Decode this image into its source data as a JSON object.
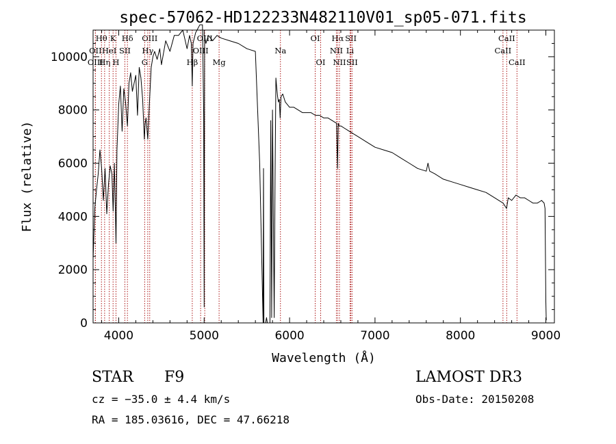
{
  "chart_data": {
    "type": "line",
    "title": "spec-57062-HD122233N482110V01_sp05-071.fits",
    "xlabel": "Wavelength (Å)",
    "ylabel": "Flux (relative)",
    "xlim": [
      3700,
      9100
    ],
    "ylim": [
      0,
      11000
    ],
    "xticks": [
      4000,
      5000,
      6000,
      7000,
      8000,
      9000
    ],
    "yticks": [
      0,
      2000,
      4000,
      6000,
      8000,
      10000
    ],
    "line_color": "#000000",
    "marker_color": "#aa1111",
    "series": [
      {
        "name": "spectrum",
        "x": [
          3700,
          3720,
          3740,
          3760,
          3780,
          3800,
          3820,
          3840,
          3860,
          3880,
          3900,
          3920,
          3935,
          3950,
          3968,
          3980,
          4000,
          4020,
          4040,
          4060,
          4080,
          4102,
          4120,
          4140,
          4160,
          4180,
          4200,
          4220,
          4240,
          4260,
          4280,
          4300,
          4310,
          4320,
          4340,
          4360,
          4380,
          4400,
          4420,
          4450,
          4480,
          4500,
          4550,
          4600,
          4650,
          4700,
          4750,
          4800,
          4830,
          4850,
          4861,
          4870,
          4900,
          4950,
          4980,
          4995,
          5000,
          5005,
          5020,
          5050,
          5100,
          5150,
          5200,
          5300,
          5400,
          5500,
          5600,
          5650,
          5690,
          5695,
          5700,
          5705,
          5715,
          5720,
          5730,
          5740,
          5750,
          5760,
          5770,
          5780,
          5790,
          5800,
          5810,
          5820,
          5830,
          5840,
          5850,
          5860,
          5870,
          5880,
          5890,
          5900,
          5920,
          5950,
          6000,
          6050,
          6100,
          6150,
          6200,
          6250,
          6300,
          6350,
          6400,
          6450,
          6500,
          6550,
          6562,
          6570,
          6580,
          6600,
          6650,
          6700,
          6800,
          6900,
          7000,
          7100,
          7200,
          7300,
          7400,
          7500,
          7600,
          7620,
          7640,
          7700,
          7800,
          7900,
          8000,
          8100,
          8200,
          8300,
          8400,
          8500,
          8540,
          8560,
          8600,
          8650,
          8700,
          8750,
          8800,
          8850,
          8900,
          8950,
          8980,
          8990,
          9000,
          9005
        ],
        "y": [
          2400,
          4300,
          5000,
          5600,
          6500,
          5800,
          4600,
          5800,
          4100,
          5200,
          5900,
          5600,
          4200,
          6000,
          3000,
          6500,
          8200,
          8900,
          7200,
          8800,
          8300,
          7400,
          9000,
          9400,
          8700,
          9000,
          9300,
          7800,
          9600,
          9200,
          8400,
          6900,
          7500,
          7700,
          6900,
          8300,
          9600,
          10000,
          10200,
          9900,
          10300,
          9700,
          10600,
          10200,
          10800,
          10800,
          11000,
          10300,
          10800,
          10500,
          8900,
          10500,
          10900,
          11200,
          11200,
          7800,
          600,
          10800,
          10500,
          10800,
          10600,
          10800,
          10700,
          10600,
          10500,
          10300,
          10200,
          6000,
          0,
          5800,
          0,
          0,
          0,
          0,
          200,
          0,
          0,
          0,
          0,
          7600,
          200,
          8000,
          4000,
          200,
          5500,
          9200,
          8800,
          8500,
          8300,
          8400,
          7700,
          8500,
          8600,
          8300,
          8100,
          8100,
          8000,
          7900,
          7900,
          7900,
          7800,
          7800,
          7700,
          7700,
          7600,
          7500,
          5800,
          7500,
          7400,
          7400,
          7300,
          7200,
          7000,
          6800,
          6600,
          6500,
          6400,
          6200,
          6000,
          5800,
          5700,
          6000,
          5700,
          5600,
          5400,
          5300,
          5200,
          5100,
          5000,
          4900,
          4700,
          4500,
          4300,
          4700,
          4600,
          4800,
          4700,
          4700,
          4600,
          4500,
          4500,
          4600,
          4500,
          4300,
          800,
          100
        ]
      }
    ],
    "spectral_lines": [
      {
        "label": "Hθ",
        "x": 3798,
        "row": 0
      },
      {
        "label": "OII",
        "x": 3727,
        "row": 1
      },
      {
        "label": "OIII",
        "x": 3727,
        "row": 2
      },
      {
        "label": "Hη",
        "x": 3835,
        "row": 2
      },
      {
        "label": "K",
        "x": 3934,
        "row": 0
      },
      {
        "label": "HeI",
        "x": 3889,
        "row": 1
      },
      {
        "label": "SII",
        "x": 4072,
        "row": 1
      },
      {
        "label": "H",
        "x": 3968,
        "row": 2
      },
      {
        "label": "Hδ",
        "x": 4102,
        "row": 0
      },
      {
        "label": "OIII",
        "x": 4363,
        "row": 0
      },
      {
        "label": "Hγ",
        "x": 4340,
        "row": 1
      },
      {
        "label": "G",
        "x": 4304,
        "row": 2
      },
      {
        "label": "Hβ",
        "x": 4861,
        "row": 2
      },
      {
        "label": "OIII",
        "x": 5007,
        "row": 0
      },
      {
        "label": "OIII",
        "x": 4959,
        "row": 1
      },
      {
        "label": "Mg",
        "x": 5175,
        "row": 2
      },
      {
        "label": "Na",
        "x": 5893,
        "row": 1
      },
      {
        "label": "OI",
        "x": 6300,
        "row": 0
      },
      {
        "label": "OI",
        "x": 6364,
        "row": 2
      },
      {
        "label": "Hα",
        "x": 6563,
        "row": 0
      },
      {
        "label": "SII",
        "x": 6717,
        "row": 0
      },
      {
        "label": "NII",
        "x": 6548,
        "row": 1
      },
      {
        "label": "Li",
        "x": 6708,
        "row": 1
      },
      {
        "label": "NII",
        "x": 6584,
        "row": 2
      },
      {
        "label": "SII",
        "x": 6731,
        "row": 2
      },
      {
        "label": "CaII",
        "x": 8542,
        "row": 0
      },
      {
        "label": "CaII",
        "x": 8498,
        "row": 1
      },
      {
        "label": "CaII",
        "x": 8662,
        "row": 2
      }
    ]
  },
  "info": {
    "class_label": "STAR",
    "subclass": "F9",
    "survey": "LAMOST DR3",
    "cz": "cz = −35.0 ± 4.4 km/s",
    "obs_date": "Obs-Date: 20150208",
    "coords": "RA = 185.03616, DEC =  47.66218"
  }
}
